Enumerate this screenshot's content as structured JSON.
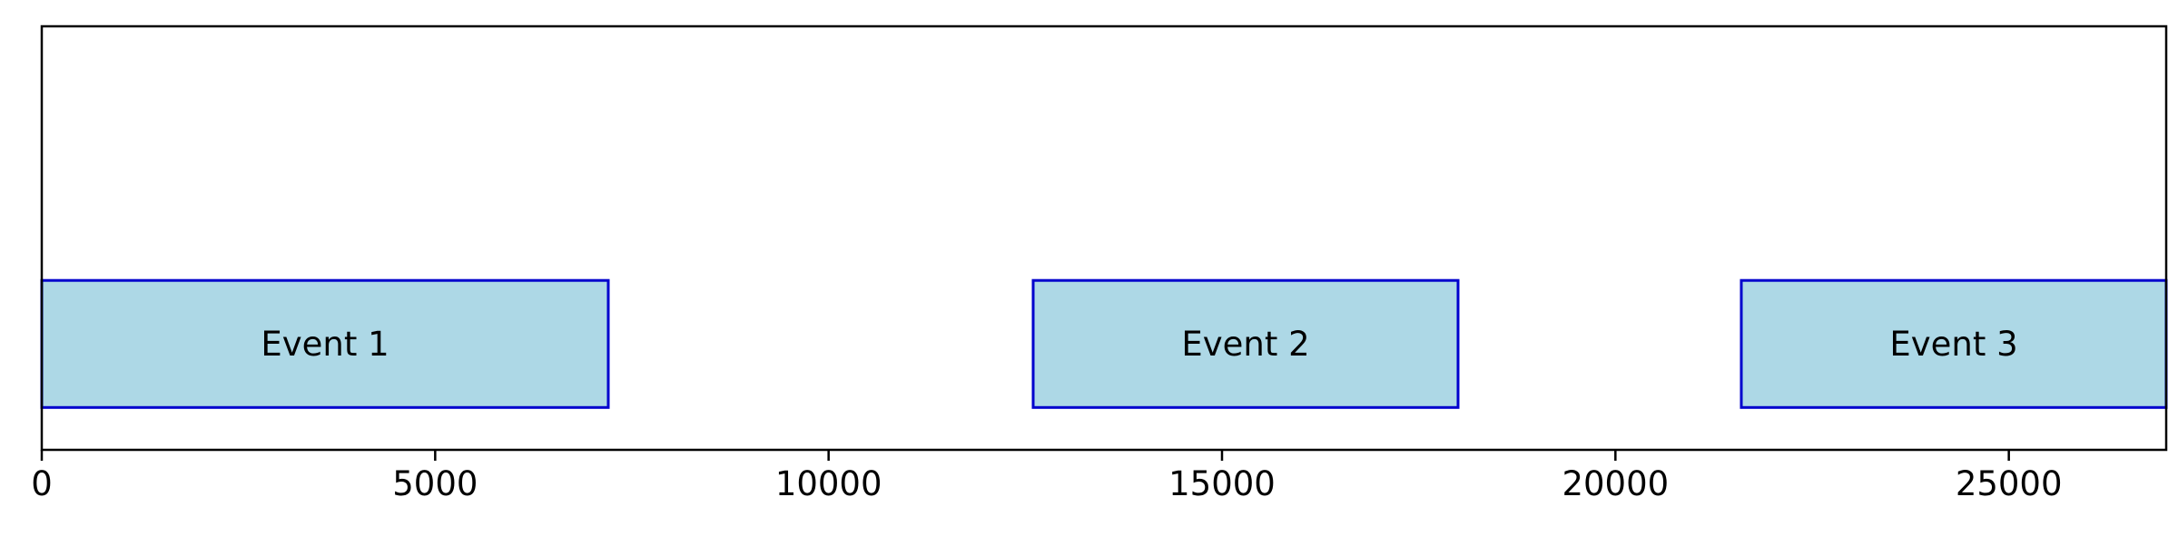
{
  "chart_data": {
    "type": "bar",
    "orientation": "horizontal",
    "title": "",
    "xlabel": "",
    "ylabel": "",
    "xlim": [
      0,
      27000
    ],
    "ylim": [
      0,
      1
    ],
    "grid": false,
    "xticks": [
      0,
      5000,
      10000,
      15000,
      20000,
      25000
    ],
    "xtick_labels": [
      "0",
      "5000",
      "10000",
      "15000",
      "20000",
      "25000"
    ],
    "bar_fill_color": "#add8e6",
    "bar_edge_color": "#0000cd",
    "events": [
      {
        "label": "Event 1",
        "start": 0,
        "end": 7200,
        "y_bottom": 0.1,
        "y_top": 0.4
      },
      {
        "label": "Event 2",
        "start": 12600,
        "end": 18000,
        "y_bottom": 0.1,
        "y_top": 0.4
      },
      {
        "label": "Event 3",
        "start": 21600,
        "end": 27000,
        "y_bottom": 0.1,
        "y_top": 0.4
      }
    ]
  }
}
